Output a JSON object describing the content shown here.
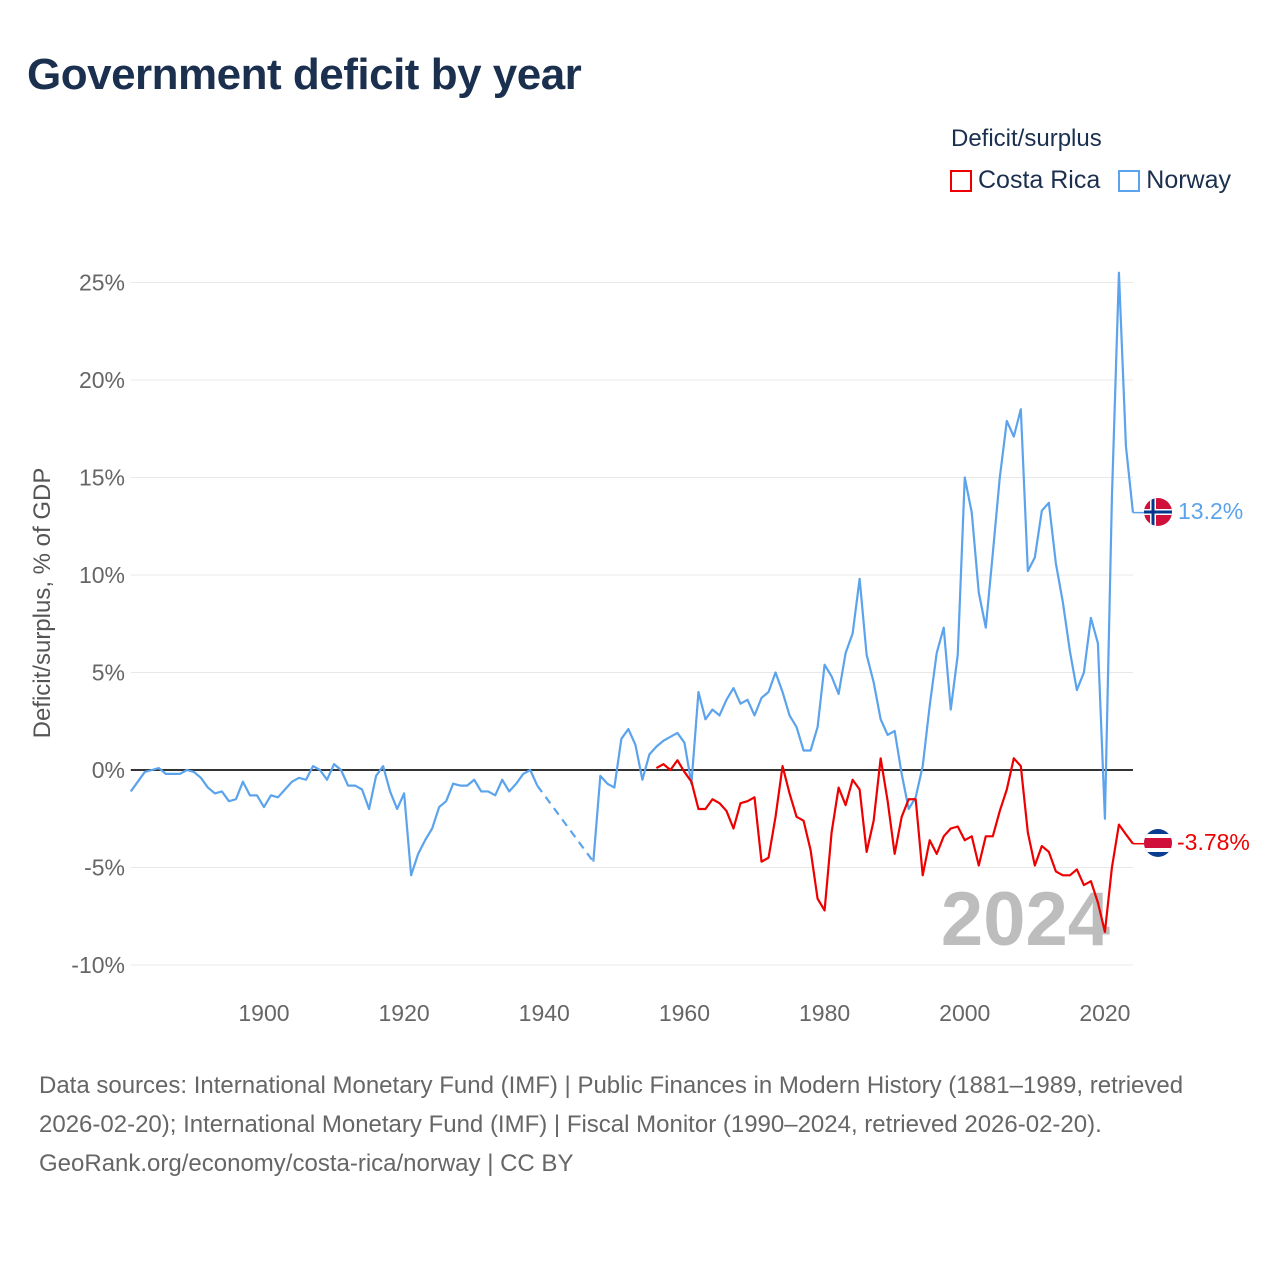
{
  "title": "Government deficit by year",
  "legend": {
    "title": "Deficit/surplus",
    "items": [
      {
        "label": "Costa Rica",
        "color": "#ee0000"
      },
      {
        "label": "Norway",
        "color": "#5ba3ec"
      }
    ]
  },
  "watermark_year": "2024",
  "footer": {
    "sources": "Data sources: International Monetary Fund (IMF) | Public Finances in Modern History (1881–1989, retrieved 2026-02-20); International Monetary Fund (IMF) | Fiscal Monitor (1990–2024, retrieved 2026-02-20).",
    "credit": "GeoRank.org/economy/costa-rica/norway | CC BY"
  },
  "chart_data": {
    "type": "line",
    "title": "Government deficit by year",
    "xlabel": "",
    "ylabel": "Deficit/surplus, % of GDP",
    "xlim": [
      1881,
      2024
    ],
    "ylim": [
      -10,
      25
    ],
    "x_ticks": [
      1900,
      1920,
      1940,
      1960,
      1980,
      2000,
      2020
    ],
    "y_ticks": [
      -10,
      -5,
      0,
      5,
      10,
      15,
      20,
      25
    ],
    "y_tick_labels": [
      "-10%",
      "-5%",
      "0%",
      "5%",
      "10%",
      "15%",
      "20%",
      "25%"
    ],
    "grid": true,
    "legend_position": "top-right",
    "series": [
      {
        "name": "Norway",
        "color": "#5ba3ec",
        "end_label": "13.2%",
        "start_year": 1881,
        "values": [
          -1.1,
          -0.6,
          -0.1,
          0,
          0.1,
          -0.2,
          -0.2,
          -0.2,
          0,
          -0.1,
          -0.4,
          -0.9,
          -1.2,
          -1.1,
          -1.6,
          -1.5,
          -0.6,
          -1.3,
          -1.3,
          -1.9,
          -1.3,
          -1.4,
          -1.0,
          -0.6,
          -0.4,
          -0.5,
          0.2,
          0,
          -0.5,
          0.3,
          0,
          -0.8,
          -0.8,
          -1.0,
          -2.0,
          -0.3,
          0.2,
          -1.1,
          -2.0,
          -1.2,
          -5.4,
          -4.3,
          -3.6,
          -3.0,
          -1.9,
          -1.6,
          -0.7,
          -0.8,
          -0.8,
          -0.5,
          -1.1,
          -1.1,
          -1.3,
          -0.5,
          -1.1,
          -0.7,
          -0.2,
          0,
          -0.8,
          null,
          null,
          null,
          null,
          null,
          null,
          null,
          -4.7,
          -0.3,
          -0.7,
          -0.9,
          1.6,
          2.1,
          1.3,
          -0.5,
          0.8,
          1.2,
          1.5,
          1.7,
          1.9,
          1.4,
          -0.7,
          4.0,
          2.6,
          3.1,
          2.8,
          3.6,
          4.2,
          3.4,
          3.6,
          2.8,
          3.7,
          4.0,
          5.0,
          4.0,
          2.8,
          2.2,
          1.0,
          1.0,
          2.2,
          5.4,
          4.8,
          3.9,
          6.0,
          7.0,
          9.8,
          5.9,
          4.5,
          2.6,
          1.8,
          2.0,
          -0.2,
          -2.0,
          -1.4,
          0.2,
          3.3,
          6.0,
          7.3,
          3.1,
          5.9,
          15.0,
          13.2,
          9.1,
          7.3,
          11.1,
          15.0,
          17.9,
          17.1,
          18.5,
          10.2,
          10.9,
          13.3,
          13.7,
          10.6,
          8.6,
          6.1,
          4.1,
          5.0,
          7.8,
          6.5,
          -2.5,
          14.0,
          25.5,
          16.6,
          13.2
        ]
      },
      {
        "name": "Costa Rica",
        "color": "#ee0000",
        "end_label": "-3.78%",
        "start_year": 1956,
        "values": [
          0.1,
          0.3,
          0,
          0.5,
          -0.1,
          -0.6,
          -2.0,
          -2.0,
          -1.5,
          -1.7,
          -2.1,
          -3.0,
          -1.7,
          -1.6,
          -1.4,
          -4.7,
          -4.5,
          -2.4,
          0.2,
          -1.2,
          -2.4,
          -2.6,
          -4.1,
          -6.6,
          -7.2,
          -3.2,
          -0.9,
          -1.8,
          -0.5,
          -1.0,
          -4.2,
          -2.6,
          0.6,
          -1.6,
          -4.3,
          -2.4,
          -1.5,
          -1.5,
          -5.4,
          -3.6,
          -4.3,
          -3.4,
          -3.0,
          -2.9,
          -3.6,
          -3.4,
          -4.9,
          -3.4,
          -3.4,
          -2.1,
          -1.0,
          0.6,
          0.2,
          -3.2,
          -4.9,
          -3.9,
          -4.2,
          -5.2,
          -5.4,
          -5.4,
          -5.1,
          -5.9,
          -5.7,
          -6.8,
          -8.3,
          -5.0,
          -2.8,
          -3.3,
          -3.78
        ]
      }
    ]
  }
}
